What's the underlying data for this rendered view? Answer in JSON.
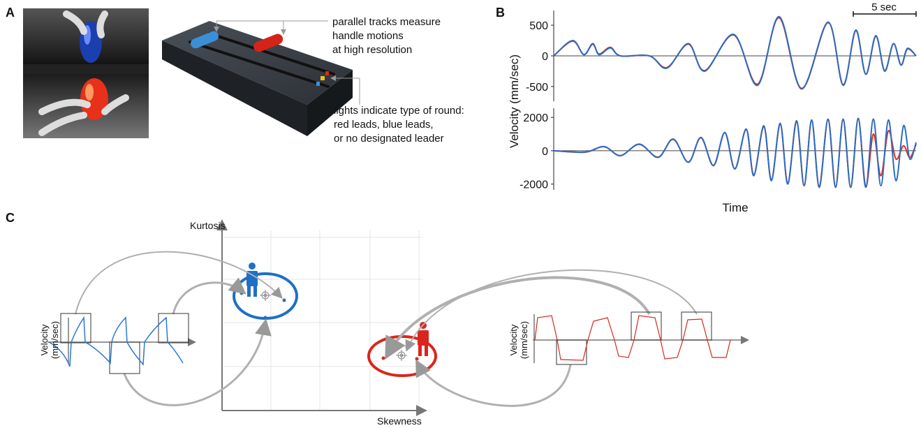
{
  "panel_a": {
    "label": "A",
    "annotation_tracks": [
      "parallel tracks measure",
      "handle motions",
      "at high resolution"
    ],
    "annotation_lights": [
      "lights indicate type of round:",
      "red leads, blue leads,",
      "or no designated leader"
    ]
  },
  "panel_b": {
    "label": "B",
    "scale_bar": "5 sec",
    "y_label": "Velocity (mm/sec)",
    "x_label": "Time"
  },
  "panel_c": {
    "label": "C",
    "y_axis": "Kurtosis",
    "x_axis": "Skewness",
    "left_wave_label": [
      "Velocity",
      "(mm/sec)"
    ],
    "right_wave_label": [
      "Velocity",
      "(mm/sec)"
    ]
  },
  "chart_data": [
    {
      "type": "line",
      "xlim": [
        0,
        28.8
      ],
      "ylim": [
        -740,
        740
      ],
      "yticks": [
        500,
        0,
        -500
      ],
      "x": [
        0,
        1.5,
        2.4,
        3.1,
        3.6,
        4.5,
        5.3,
        7.6,
        9.0,
        10.7,
        12.0,
        14.3,
        16.2,
        17.9,
        19.7,
        21.8,
        23.0,
        24.0,
        24.8,
        25.6,
        26.3,
        27.0,
        27.6,
        28.1,
        28.8
      ],
      "series": [
        {
          "color": "#e0301e",
          "values": [
            0,
            240,
            20,
            190,
            30,
            140,
            0,
            0,
            -190,
            190,
            -240,
            340,
            -460,
            620,
            -540,
            540,
            -470,
            410,
            -300,
            320,
            -240,
            200,
            -150,
            110,
            0
          ]
        },
        {
          "color": "#2a6cc4",
          "values": [
            0,
            250,
            20,
            200,
            20,
            130,
            0,
            0,
            -200,
            200,
            -250,
            350,
            -480,
            640,
            -530,
            550,
            -480,
            420,
            -300,
            330,
            -250,
            200,
            -150,
            120,
            0
          ]
        }
      ]
    },
    {
      "type": "line",
      "xlim": [
        0,
        28.8
      ],
      "ylim": [
        -2350,
        2550
      ],
      "yticks": [
        2000,
        0,
        -2000
      ],
      "x": [
        0,
        2.5,
        4.0,
        5.3,
        6.8,
        8.3,
        9.5,
        10.7,
        11.7,
        12.7,
        13.6,
        14.4,
        15.3,
        15.9,
        16.7,
        17.3,
        18.0,
        18.6,
        19.3,
        19.9,
        20.5,
        21.1,
        21.8,
        22.4,
        23.0,
        23.6,
        24.2,
        24.8,
        25.4,
        26.0,
        26.6,
        27.2,
        27.8,
        28.3,
        28.8
      ],
      "series": [
        {
          "color": "#e0301e",
          "values": [
            0,
            -90,
            240,
            -290,
            380,
            -380,
            680,
            -680,
            780,
            -880,
            1080,
            -1080,
            1280,
            -1450,
            1450,
            -1750,
            1600,
            -1950,
            1750,
            -2050,
            1800,
            -2100,
            1850,
            -2150,
            1850,
            -2150,
            1900,
            -2150,
            1000,
            -1500,
            1200,
            -500,
            300,
            -400,
            400
          ]
        },
        {
          "color": "#2a6cc4",
          "values": [
            0,
            -80,
            250,
            -300,
            400,
            -400,
            700,
            -700,
            800,
            -900,
            1100,
            -1100,
            1300,
            -1500,
            1500,
            -1800,
            1650,
            -2000,
            1800,
            -2100,
            1850,
            -2200,
            1900,
            -2200,
            1900,
            -2200,
            1950,
            -2200,
            1900,
            -2100,
            1850,
            -1800,
            1500,
            -500,
            500
          ]
        }
      ]
    }
  ]
}
